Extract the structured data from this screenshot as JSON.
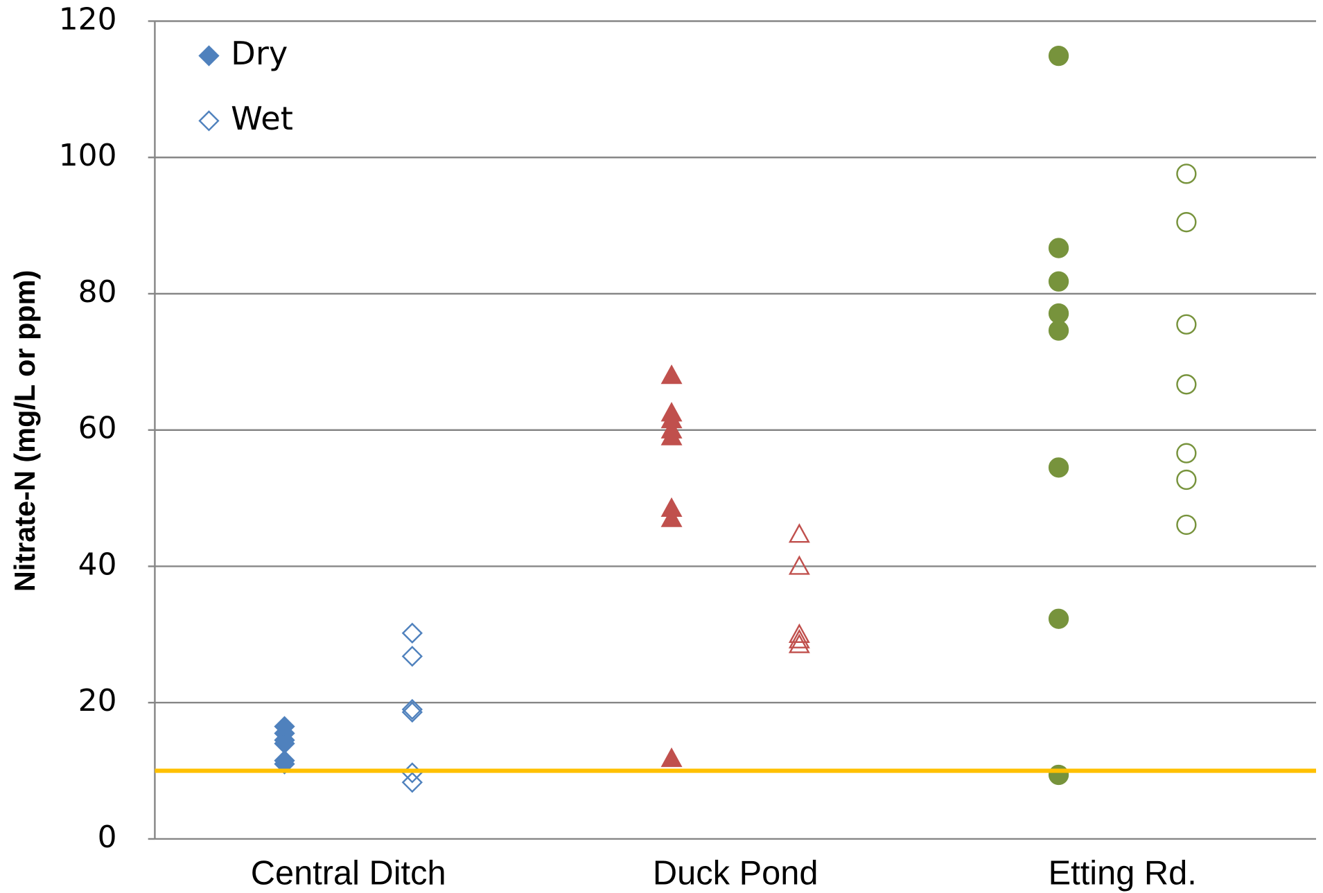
{
  "chart_data": {
    "type": "strip",
    "y_label": "Nitrate-N (mg/L or ppm)",
    "categories": [
      "Central Ditch",
      "Duck Pond",
      "Etting Rd."
    ],
    "colors": [
      "#4f81bd",
      "#c0504d",
      "#77933c"
    ],
    "markers": [
      "diamond",
      "triangle",
      "circle"
    ],
    "series": [
      {
        "name": "Dry",
        "filled": true,
        "values": [
          [
            16.5,
            15.5,
            14.5,
            14,
            11.5,
            11
          ],
          [
            68,
            62.5,
            61.5,
            60,
            59,
            48.5,
            47,
            11.8
          ],
          [
            114.9,
            86.7,
            81.8,
            77.1,
            74.6,
            54.5,
            32.3,
            9.4
          ]
        ]
      },
      {
        "name": "Wet",
        "filled": false,
        "values": [
          [
            30.2,
            26.8,
            19,
            18.6,
            9.7,
            8.3
          ],
          [
            44.7,
            40,
            30,
            29.2,
            28.5
          ],
          [
            97.6,
            90.5,
            75.5,
            66.7,
            56.6,
            52.7,
            46.1
          ]
        ]
      }
    ],
    "reference_line": {
      "value": 10,
      "color": "#ffc000"
    },
    "ylim": [
      0,
      120
    ],
    "yticks": [
      0,
      20,
      40,
      60,
      80,
      100,
      120
    ],
    "grid": true,
    "legend": "top-left"
  }
}
